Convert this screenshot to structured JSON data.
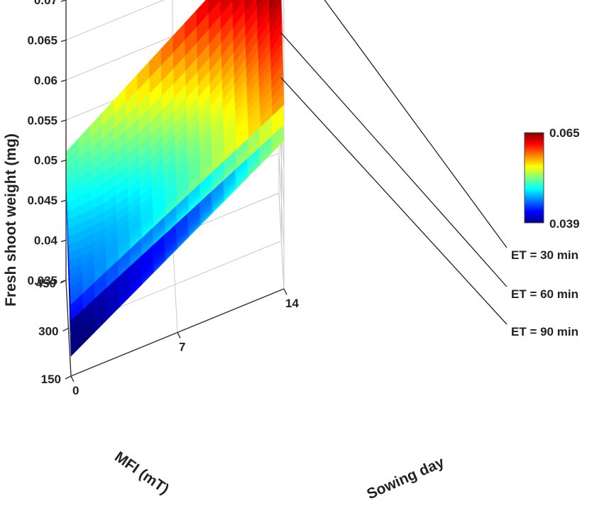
{
  "chart_data": {
    "type": "surface3d",
    "xlabel": "Sowing day",
    "ylabel": "MFI (mT)",
    "zlabel": "Fresh shoot weight (mg)",
    "x_ticks": [
      "0",
      "7",
      "14"
    ],
    "y_ticks": [
      "150",
      "300",
      "450"
    ],
    "z_ticks": [
      "0.035",
      "0.04",
      "0.045",
      "0.05",
      "0.055",
      "0.06",
      "0.065",
      "0.07"
    ],
    "x_range": [
      0,
      14
    ],
    "y_range": [
      150,
      450
    ],
    "zlim": [
      0.035,
      0.07
    ],
    "grid": true,
    "colorbar": {
      "min_label": "0.039",
      "max_label": "0.065",
      "min": 0.039,
      "max": 0.065,
      "colormap": "jet"
    },
    "series": [
      {
        "name": "ET = 30 min",
        "corners": {
          "x0_y150": 0.044,
          "x14_y150": 0.058,
          "x0_y450": 0.051,
          "x14_y450": 0.069
        },
        "center": 0.051
      },
      {
        "name": "ET = 60 min",
        "corners": {
          "x0_y150": 0.042,
          "x14_y150": 0.0555,
          "x0_y450": 0.049,
          "x14_y450": 0.0565
        },
        "center": 0.047
      },
      {
        "name": "ET = 90 min",
        "corners": {
          "x0_y150": 0.0375,
          "x14_y150": 0.0535,
          "x0_y450": 0.046,
          "x14_y450": 0.0505
        },
        "center": 0.0435
      }
    ]
  }
}
